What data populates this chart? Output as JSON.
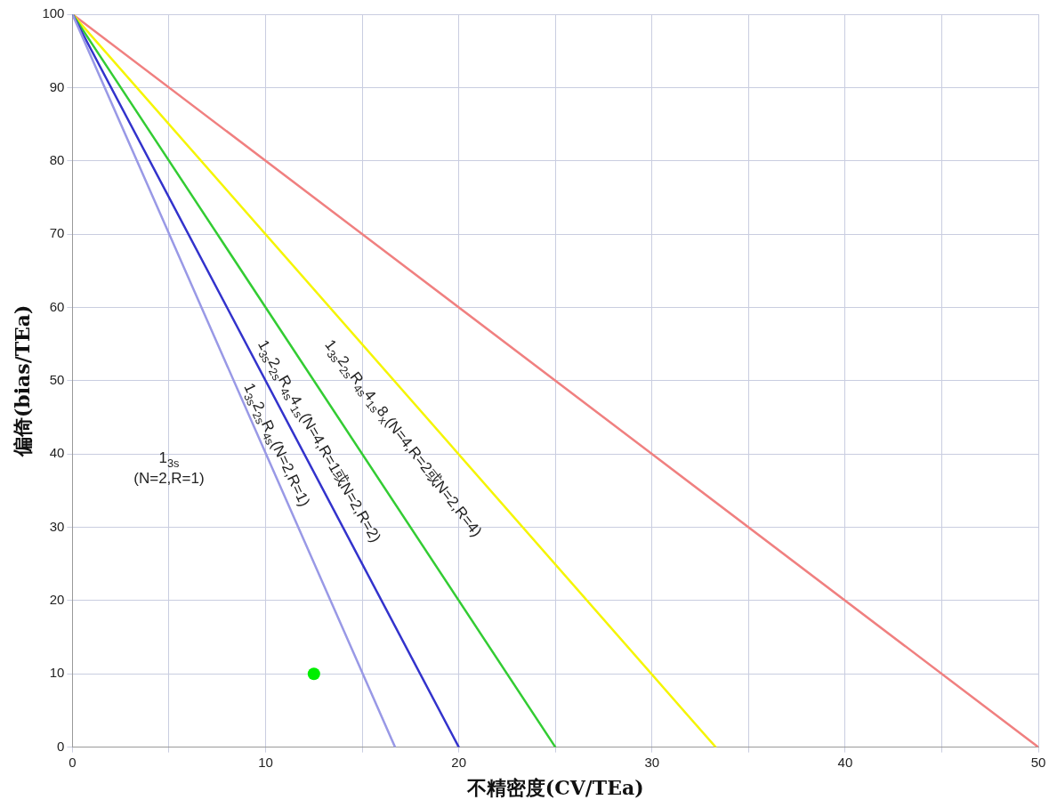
{
  "chart_data": {
    "type": "line",
    "xlabel": "不精密度(CV/TEa)",
    "ylabel": "偏倚(bias/TEa)",
    "xlim": [
      0,
      50
    ],
    "ylim": [
      0,
      100
    ],
    "xticks": [
      0,
      {
        "value": 5,
        "label": null
      },
      10,
      {
        "value": 15,
        "label": null
      },
      20,
      {
        "value": 25,
        "label": null
      },
      30,
      {
        "value": 35,
        "label": null
      },
      40,
      {
        "value": 45,
        "label": null
      },
      50
    ],
    "yticks": [
      0,
      10,
      20,
      30,
      40,
      50,
      60,
      70,
      80,
      90,
      100
    ],
    "grid": true,
    "legend": false,
    "line_style": "solid",
    "series": [
      {
        "color": "#9999e6",
        "x": [
          0,
          16.7
        ],
        "values": [
          100,
          0
        ],
        "marker": "none"
      },
      {
        "color": "#3333cc",
        "x": [
          0,
          20
        ],
        "values": [
          100,
          0
        ],
        "marker": "none"
      },
      {
        "color": "#33cc33",
        "x": [
          0,
          25
        ],
        "values": [
          100,
          0
        ],
        "marker": "none"
      },
      {
        "color": "#f5f500",
        "x": [
          0,
          33.3
        ],
        "values": [
          100,
          0
        ],
        "marker": "none"
      },
      {
        "color": "#f08080",
        "x": [
          0,
          50
        ],
        "values": [
          100,
          0
        ],
        "marker": "none"
      },
      {
        "type": "scatter",
        "color": "#00ee00",
        "x": [
          12.5
        ],
        "values": [
          10
        ],
        "marker": "circle"
      }
    ],
    "annotations": [
      "1$_{3s}$\n(N=2,R=1)",
      "1$_{3s}$2$_{2s}$R$_{4s}$(N=2,R=1)",
      "1$_{3s}$2$_{2s}$R$_{4s}$4$_{1s}$(N=4,R=1或N=2,R=2)",
      "1$_{3s}$2$_{2s}$R$_{4s}$4$_{1s}$8$_{x}$(N=4,R=2或N=2,R=4)"
    ]
  }
}
